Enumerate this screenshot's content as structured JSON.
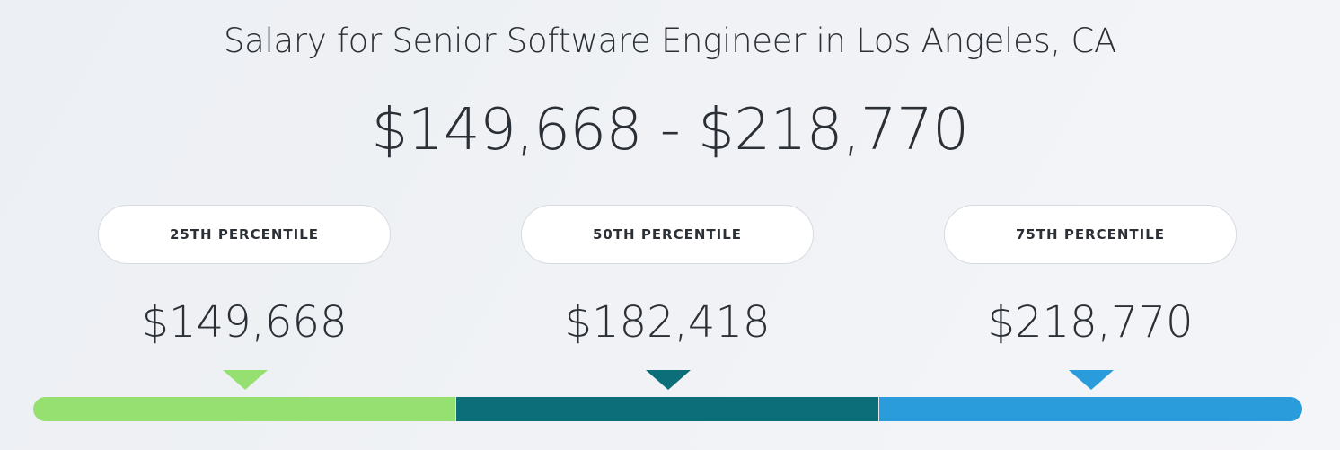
{
  "header": {
    "title": "Salary for Senior Software Engineer in Los Angeles, CA",
    "range": "$149,668 - $218,770"
  },
  "percentiles": [
    {
      "label": "25TH PERCENTILE",
      "value": "$149,668"
    },
    {
      "label": "50TH PERCENTILE",
      "value": "$182,418"
    },
    {
      "label": "75TH PERCENTILE",
      "value": "$218,770"
    }
  ]
}
